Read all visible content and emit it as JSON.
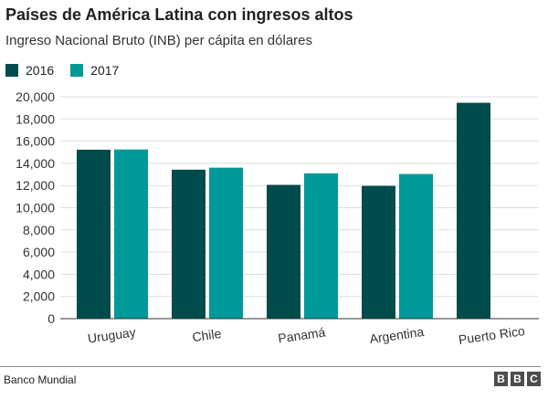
{
  "chart_data": {
    "type": "bar",
    "title": "Países de América Latina con ingresos altos",
    "subtitle": "Ingreso Nacional Bruto (INB) per cápita en dólares",
    "categories": [
      "Uruguay",
      "Chile",
      "Panamá",
      "Argentina",
      "Puerto Rico"
    ],
    "series": [
      {
        "name": "2016",
        "color": "#004c4c",
        "values": [
          15230,
          13430,
          12060,
          11970,
          19460
        ]
      },
      {
        "name": "2017",
        "color": "#009999",
        "values": [
          15250,
          13610,
          13100,
          13040,
          null
        ]
      }
    ],
    "ylim": [
      0,
      20000
    ],
    "yticks": [
      0,
      2000,
      4000,
      6000,
      8000,
      10000,
      12000,
      14000,
      16000,
      18000,
      20000
    ],
    "ytick_labels": [
      "0",
      "2,000",
      "4,000",
      "6,000",
      "8,000",
      "10,000",
      "12,000",
      "14,000",
      "16,000",
      "18,000",
      "20,000"
    ],
    "grid": true,
    "legend_position": "top-left"
  },
  "footer": {
    "source": "Banco Mundial",
    "logo_letters": [
      "B",
      "B",
      "C"
    ]
  }
}
